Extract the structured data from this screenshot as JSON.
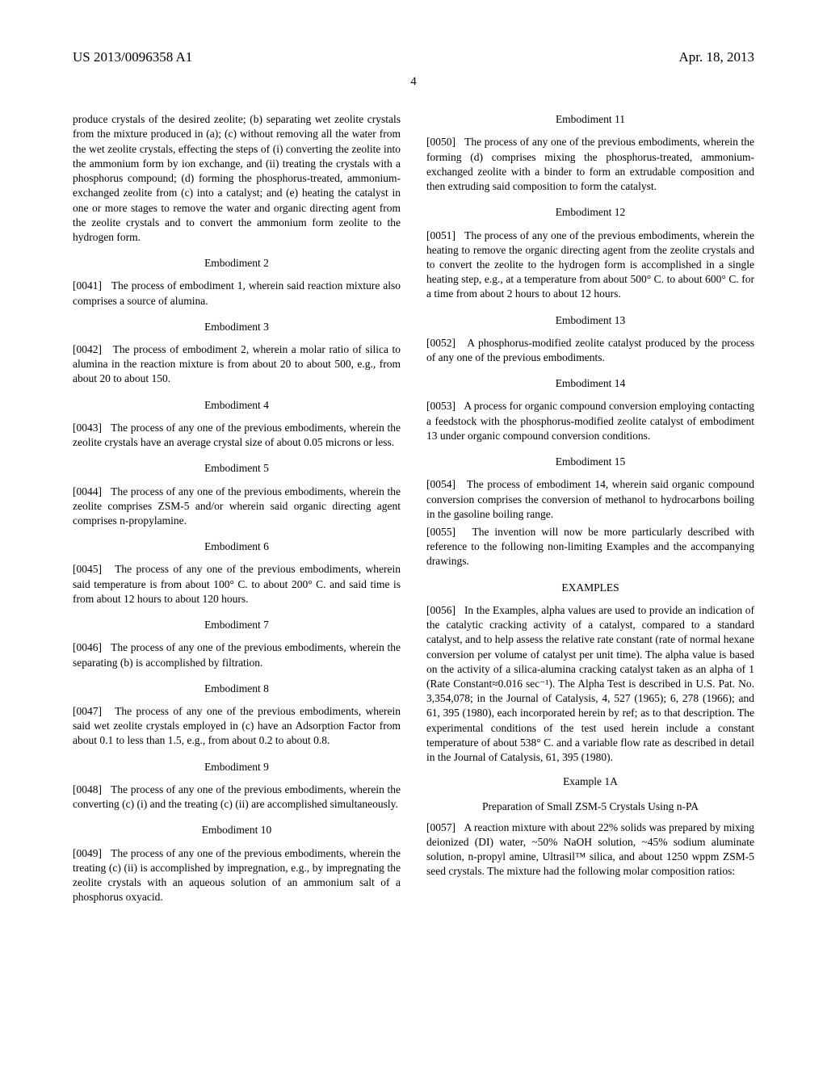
{
  "header": {
    "left": "US 2013/0096358 A1",
    "right": "Apr. 18, 2013"
  },
  "page_number": "4",
  "continued_para": "produce crystals of the desired zeolite; (b) separating wet zeolite crystals from the mixture produced in (a); (c) without removing all the water from the wet zeolite crystals, effecting the steps of (i) converting the zeolite into the ammonium form by ion exchange, and (ii) treating the crystals with a phosphorus compound; (d) forming the phosphorus-treated, ammonium-exchanged zeolite from (c) into a catalyst; and (e) heating the catalyst in one or more stages to remove the water and organic directing agent from the zeolite crystals and to convert the ammonium form zeolite to the hydrogen form.",
  "embodiments": [
    {
      "title": "Embodiment 2",
      "num": "[0041]",
      "text": "The process of embodiment 1, wherein said reaction mixture also comprises a source of alumina."
    },
    {
      "title": "Embodiment 3",
      "num": "[0042]",
      "text": "The process of embodiment 2, wherein a molar ratio of silica to alumina in the reaction mixture is from about 20 to about 500, e.g., from about 20 to about 150."
    },
    {
      "title": "Embodiment 4",
      "num": "[0043]",
      "text": "The process of any one of the previous embodiments, wherein the zeolite crystals have an average crystal size of about 0.05 microns or less."
    },
    {
      "title": "Embodiment 5",
      "num": "[0044]",
      "text": "The process of any one of the previous embodiments, wherein the zeolite comprises ZSM-5 and/or wherein said organic directing agent comprises n-propylamine."
    },
    {
      "title": "Embodiment 6",
      "num": "[0045]",
      "text": "The process of any one of the previous embodiments, wherein said temperature is from about 100° C. to about 200° C. and said time is from about 12 hours to about 120 hours."
    },
    {
      "title": "Embodiment 7",
      "num": "[0046]",
      "text": "The process of any one of the previous embodiments, wherein the separating (b) is accomplished by filtration."
    },
    {
      "title": "Embodiment 8",
      "num": "[0047]",
      "text": "The process of any one of the previous embodiments, wherein said wet zeolite crystals employed in (c) have an Adsorption Factor from about 0.1 to less than 1.5, e.g., from about 0.2 to about 0.8."
    },
    {
      "title": "Embodiment 9",
      "num": "[0048]",
      "text": "The process of any one of the previous embodiments, wherein the converting (c) (i) and the treating (c) (ii) are accomplished simultaneously."
    },
    {
      "title": "Embodiment 10",
      "num": "[0049]",
      "text": "The process of any one of the previous embodiments, wherein the treating (c) (ii) is accomplished by impregnation, e.g., by impregnating the zeolite crystals with an aqueous solution of an ammonium salt of a phosphorus oxyacid."
    },
    {
      "title": "Embodiment 11",
      "num": "[0050]",
      "text": "The process of any one of the previous embodiments, wherein the forming (d) comprises mixing the phosphorus-treated, ammonium-exchanged zeolite with a binder to form an extrudable composition and then extruding said composition to form the catalyst."
    },
    {
      "title": "Embodiment 12",
      "num": "[0051]",
      "text": "The process of any one of the previous embodiments, wherein the heating to remove the organic directing agent from the zeolite crystals and to convert the zeolite to the hydrogen form is accomplished in a single heating step, e.g., at a temperature from about 500° C. to about 600° C. for a time from about 2 hours to about 12 hours."
    },
    {
      "title": "Embodiment 13",
      "num": "[0052]",
      "text": "A phosphorus-modified zeolite catalyst produced by the process of any one of the previous embodiments."
    },
    {
      "title": "Embodiment 14",
      "num": "[0053]",
      "text": "A process for organic compound conversion employing contacting a feedstock with the phosphorus-modified zeolite catalyst of embodiment 13 under organic compound conversion conditions."
    },
    {
      "title": "Embodiment 15",
      "num": "[0054]",
      "text": "The process of embodiment 14, wherein said organic compound conversion comprises the conversion of methanol to hydrocarbons boiling in the gasoline boiling range."
    }
  ],
  "post_emb": {
    "num": "[0055]",
    "text": "The invention will now be more particularly described with reference to the following non-limiting Examples and the accompanying drawings."
  },
  "examples_heading": "EXAMPLES",
  "ex_intro": {
    "num": "[0056]",
    "text": "In the Examples, alpha values are used to provide an indication of the catalytic cracking activity of a catalyst, compared to a standard catalyst, and to help assess the relative rate constant (rate of normal hexane conversion per volume of catalyst per unit time). The alpha value is based on the activity of a silica-alumina cracking catalyst taken as an alpha of 1 (Rate Constant≈0.016 sec⁻¹). The Alpha Test is described in U.S. Pat. No. 3,354,078; in the Journal of Catalysis, 4, 527 (1965); 6, 278 (1966); and 61, 395 (1980), each incorporated herein by ref; as to that description. The experimental conditions of the test used herein include a constant temperature of about 538° C. and a variable flow rate as described in detail in the Journal of Catalysis, 61, 395 (1980)."
  },
  "example1a": {
    "label": "Example 1A",
    "subtitle": "Preparation of Small ZSM-5 Crystals Using n-PA",
    "num": "[0057]",
    "text": "A reaction mixture with about 22% solids was prepared by mixing deionized (DI) water, ~50% NaOH solution, ~45% sodium aluminate solution, n-propyl amine, Ultrasil™ silica, and about 1250 wppm ZSM-5 seed crystals. The mixture had the following molar composition ratios:"
  }
}
